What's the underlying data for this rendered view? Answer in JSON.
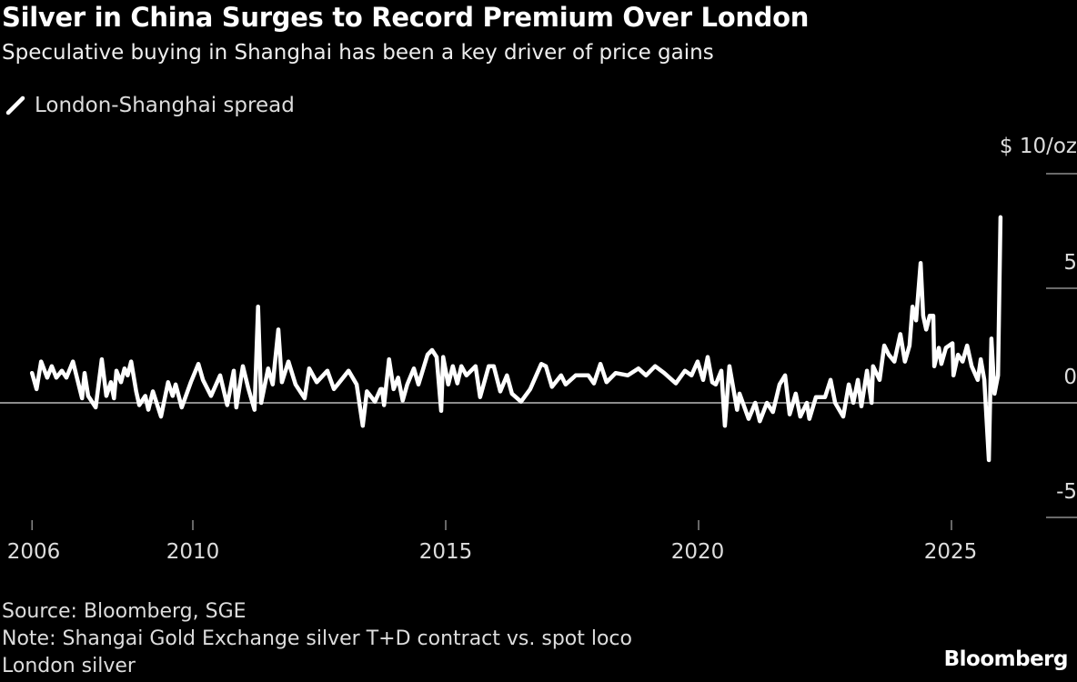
{
  "title": "Silver in China Surges to Record Premium Over London",
  "subtitle": "Speculative buying in Shanghai has been a key driver of price gains",
  "footer": {
    "source": "Source: Bloomberg, SGE",
    "note_line1": "Note: Shangai Gold Exchange silver T+D contract vs. spot loco",
    "note_line2": "London silver",
    "brand": "Bloomberg"
  },
  "chart_data": {
    "type": "line",
    "title": "Silver in China Surges to Record Premium Over London",
    "legend": {
      "position": "top-left",
      "entries": [
        "London-Shanghai spread"
      ]
    },
    "y_unit_label": "$ 10/oz",
    "ylim": [
      -5,
      10
    ],
    "yticks": [
      {
        "value": 10,
        "label": "$ 10/oz"
      },
      {
        "value": 5,
        "label": "5"
      },
      {
        "value": 0,
        "label": "0"
      },
      {
        "value": -5,
        "label": "-5"
      }
    ],
    "xlim": [
      2006.82,
      2025.97
    ],
    "xticks": [
      {
        "value": 2006,
        "label": "2006"
      },
      {
        "value": 2010,
        "label": "2010"
      },
      {
        "value": 2015,
        "label": "2015"
      },
      {
        "value": 2020,
        "label": "2020"
      },
      {
        "value": 2025,
        "label": "2025"
      }
    ],
    "grid": "y-only",
    "colors": {
      "background": "#000000",
      "line": "#ffffff",
      "zero_line": "#bbbbbb"
    },
    "series": [
      {
        "name": "London-Shanghai spread",
        "x": [
          2006.82,
          2006.91,
          2007.0,
          2007.12,
          2007.21,
          2007.3,
          2007.41,
          2007.5,
          2007.63,
          2007.72,
          2007.81,
          2007.86,
          2007.93,
          2008.08,
          2008.2,
          2008.29,
          2008.38,
          2008.44,
          2008.49,
          2008.58,
          2008.65,
          2008.71,
          2008.78,
          2008.88,
          2008.94,
          2009.06,
          2009.12,
          2009.21,
          2009.37,
          2009.51,
          2009.6,
          2009.66,
          2009.78,
          2009.96,
          2010.11,
          2010.2,
          2010.36,
          2010.54,
          2010.68,
          2010.81,
          2010.86,
          2010.99,
          2011.1,
          2011.22,
          2011.29,
          2011.35,
          2011.49,
          2011.58,
          2011.69,
          2011.76,
          2011.89,
          2012.03,
          2012.21,
          2012.3,
          2012.45,
          2012.66,
          2012.79,
          2012.9,
          2013.08,
          2013.24,
          2013.36,
          2013.44,
          2013.6,
          2013.71,
          2013.74,
          2013.78,
          2013.88,
          2013.97,
          2014.06,
          2014.15,
          2014.24,
          2014.37,
          2014.46,
          2014.64,
          2014.73,
          2014.82,
          2014.91,
          2014.95,
          2015.05,
          2015.14,
          2015.23,
          2015.31,
          2015.41,
          2015.59,
          2015.68,
          2015.85,
          2015.95,
          2016.08,
          2016.21,
          2016.31,
          2016.49,
          2016.67,
          2016.89,
          2016.98,
          2017.1,
          2017.28,
          2017.37,
          2017.57,
          2017.82,
          2017.93,
          2018.06,
          2018.18,
          2018.36,
          2018.6,
          2018.81,
          2018.96,
          2019.14,
          2019.32,
          2019.55,
          2019.73,
          2019.86,
          2019.98,
          2020.09,
          2020.18,
          2020.27,
          2020.34,
          2020.45,
          2020.52,
          2020.61,
          2020.76,
          2020.81,
          2020.99,
          2021.12,
          2021.21,
          2021.35,
          2021.47,
          2021.6,
          2021.71,
          2021.8,
          2021.92,
          2022.01,
          2022.14,
          2022.19,
          2022.32,
          2022.5,
          2022.61,
          2022.7,
          2022.86,
          2022.97,
          2023.06,
          2023.15,
          2023.22,
          2023.33,
          2023.42,
          2023.45,
          2023.58,
          2023.67,
          2023.76,
          2023.87,
          2023.99,
          2024.08,
          2024.17,
          2024.23,
          2024.3,
          2024.39,
          2024.44,
          2024.5,
          2024.57,
          2024.64,
          2024.66,
          2024.75,
          2024.8,
          2024.89,
          2025.02,
          2025.04,
          2025.13,
          2025.22,
          2025.31,
          2025.4,
          2025.52,
          2025.58,
          2025.65,
          2025.74,
          2025.79,
          2025.85,
          2025.92,
          2025.97
        ],
        "y": [
          1.3,
          0.6,
          1.8,
          1.1,
          1.6,
          1.1,
          1.4,
          1.1,
          1.8,
          1.0,
          0.2,
          1.3,
          0.3,
          -0.2,
          1.9,
          0.3,
          0.9,
          0.2,
          1.4,
          0.9,
          1.5,
          1.2,
          1.8,
          0.5,
          -0.1,
          0.3,
          -0.3,
          0.5,
          -0.6,
          0.9,
          0.3,
          0.8,
          -0.2,
          0.9,
          1.7,
          1.0,
          0.3,
          1.2,
          -0.1,
          1.4,
          -0.2,
          1.6,
          0.6,
          -0.3,
          4.2,
          0.0,
          1.5,
          0.8,
          3.2,
          0.9,
          1.8,
          0.8,
          0.2,
          1.5,
          0.9,
          1.4,
          0.6,
          0.9,
          1.4,
          0.8,
          -1.0,
          0.5,
          0.05,
          0.6,
          0.6,
          -0.1,
          1.9,
          0.6,
          1.1,
          0.1,
          0.8,
          1.5,
          0.8,
          2.1,
          2.3,
          2.0,
          -0.35,
          2.0,
          0.8,
          1.6,
          0.85,
          1.6,
          1.2,
          1.6,
          0.25,
          1.6,
          1.6,
          0.5,
          1.2,
          0.4,
          0.05,
          0.6,
          1.7,
          1.6,
          0.7,
          1.2,
          0.8,
          1.2,
          1.2,
          0.85,
          1.7,
          0.9,
          1.3,
          1.2,
          1.5,
          1.2,
          1.6,
          1.3,
          0.85,
          1.4,
          1.2,
          1.8,
          1.0,
          2.0,
          0.9,
          0.8,
          1.4,
          -1.0,
          1.6,
          -0.3,
          0.4,
          -0.7,
          0.0,
          -0.8,
          0.0,
          -0.4,
          0.8,
          1.2,
          -0.5,
          0.4,
          -0.6,
          0.0,
          -0.7,
          0.25,
          0.25,
          1.0,
          0.0,
          -0.6,
          0.8,
          0.0,
          1.0,
          -0.15,
          1.4,
          0.0,
          1.6,
          1.0,
          2.5,
          2.1,
          1.8,
          3.0,
          1.8,
          2.5,
          4.2,
          3.6,
          6.1,
          3.8,
          3.2,
          3.8,
          3.8,
          1.6,
          2.4,
          1.7,
          2.4,
          2.6,
          1.2,
          2.1,
          1.8,
          2.5,
          1.6,
          1.0,
          1.9,
          1.0,
          -2.5,
          2.8,
          0.4,
          1.2,
          8.1
        ]
      }
    ]
  }
}
